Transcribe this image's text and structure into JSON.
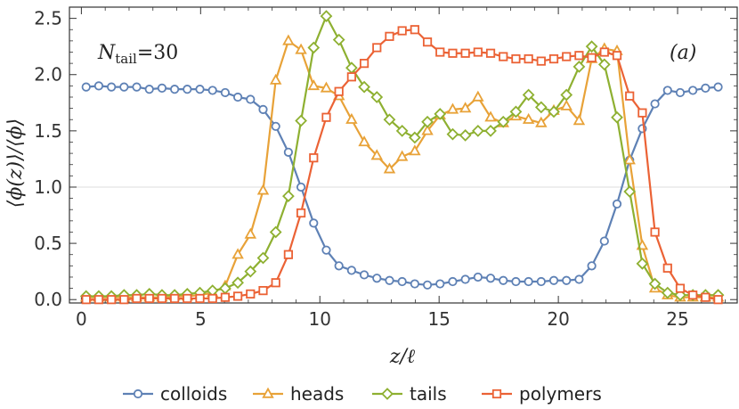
{
  "chart_data": {
    "type": "line",
    "xlabel": "z/ℓ",
    "ylabel": "⟨ϕ(z)⟩/⟨ϕ⟩",
    "xlim": [
      -0.5,
      27.5
    ],
    "ylim": [
      -0.03,
      2.6
    ],
    "xticks": [
      0,
      5,
      10,
      15,
      20,
      25
    ],
    "yticks": [
      0.0,
      0.5,
      1.0,
      1.5,
      2.0,
      2.5
    ],
    "ytick_labels": [
      "0.0",
      "0.5",
      "1.0",
      "1.5",
      "2.0",
      "2.5"
    ],
    "reference_line_y": 1.0,
    "legend_position": "bottom",
    "annotations": {
      "n_tail_symbol": "N",
      "n_tail_subscript": "tail",
      "n_tail_value": "=30",
      "panel_label": "(a)"
    },
    "x": [
      0.2,
      0.73,
      1.26,
      1.79,
      2.32,
      2.85,
      3.38,
      3.91,
      4.44,
      4.97,
      5.5,
      6.03,
      6.56,
      7.09,
      7.62,
      8.15,
      8.68,
      9.21,
      9.74,
      10.27,
      10.8,
      11.33,
      11.86,
      12.39,
      12.92,
      13.45,
      13.98,
      14.51,
      15.04,
      15.57,
      16.1,
      16.63,
      17.16,
      17.69,
      18.22,
      18.75,
      19.28,
      19.81,
      20.34,
      20.87,
      21.4,
      21.93,
      22.46,
      22.99,
      23.52,
      24.05,
      24.58,
      25.11,
      25.64,
      26.17,
      26.7
    ],
    "series": [
      {
        "name": "colloids",
        "color": "#5E81B5",
        "marker": "circle",
        "values": [
          1.89,
          1.9,
          1.89,
          1.89,
          1.89,
          1.87,
          1.88,
          1.87,
          1.87,
          1.87,
          1.86,
          1.84,
          1.8,
          1.78,
          1.69,
          1.54,
          1.31,
          1.0,
          0.68,
          0.44,
          0.3,
          0.26,
          0.22,
          0.19,
          0.17,
          0.16,
          0.14,
          0.13,
          0.14,
          0.16,
          0.18,
          0.2,
          0.19,
          0.17,
          0.16,
          0.16,
          0.16,
          0.17,
          0.17,
          0.18,
          0.3,
          0.52,
          0.85,
          1.24,
          1.52,
          1.74,
          1.86,
          1.84,
          1.86,
          1.88,
          1.89
        ]
      },
      {
        "name": "heads",
        "color": "#E8A238",
        "marker": "triangle",
        "values": [
          0.02,
          0.02,
          0.02,
          0.02,
          0.02,
          0.02,
          0.02,
          0.03,
          0.03,
          0.04,
          0.06,
          0.12,
          0.4,
          0.58,
          0.97,
          1.95,
          2.3,
          2.22,
          1.9,
          1.88,
          1.81,
          1.6,
          1.4,
          1.28,
          1.16,
          1.27,
          1.32,
          1.5,
          1.64,
          1.69,
          1.7,
          1.8,
          1.62,
          1.57,
          1.63,
          1.6,
          1.57,
          1.68,
          1.72,
          1.59,
          2.14,
          2.23,
          2.21,
          1.24,
          0.48,
          0.1,
          0.04,
          0.02,
          0.02,
          0.02,
          0.02
        ]
      },
      {
        "name": "tails",
        "color": "#8EB031",
        "marker": "diamond",
        "values": [
          0.03,
          0.03,
          0.03,
          0.04,
          0.04,
          0.05,
          0.04,
          0.04,
          0.05,
          0.06,
          0.08,
          0.1,
          0.15,
          0.25,
          0.37,
          0.6,
          0.92,
          1.59,
          2.24,
          2.52,
          2.31,
          2.06,
          1.89,
          1.8,
          1.6,
          1.5,
          1.44,
          1.58,
          1.65,
          1.47,
          1.46,
          1.5,
          1.5,
          1.58,
          1.67,
          1.82,
          1.71,
          1.67,
          1.82,
          2.07,
          2.25,
          2.09,
          1.62,
          0.96,
          0.32,
          0.14,
          0.06,
          0.04,
          0.04,
          0.04,
          0.04
        ]
      },
      {
        "name": "polymers",
        "color": "#EB6235",
        "marker": "square",
        "values": [
          0.0,
          0.0,
          0.0,
          0.0,
          0.01,
          0.01,
          0.01,
          0.01,
          0.01,
          0.01,
          0.01,
          0.02,
          0.03,
          0.05,
          0.08,
          0.15,
          0.4,
          0.77,
          1.26,
          1.62,
          1.85,
          1.98,
          2.1,
          2.24,
          2.34,
          2.39,
          2.4,
          2.29,
          2.2,
          2.19,
          2.19,
          2.2,
          2.19,
          2.16,
          2.14,
          2.14,
          2.12,
          2.14,
          2.16,
          2.17,
          2.15,
          2.2,
          2.17,
          1.81,
          1.66,
          0.6,
          0.28,
          0.1,
          0.04,
          0.02,
          0.0
        ]
      }
    ]
  }
}
